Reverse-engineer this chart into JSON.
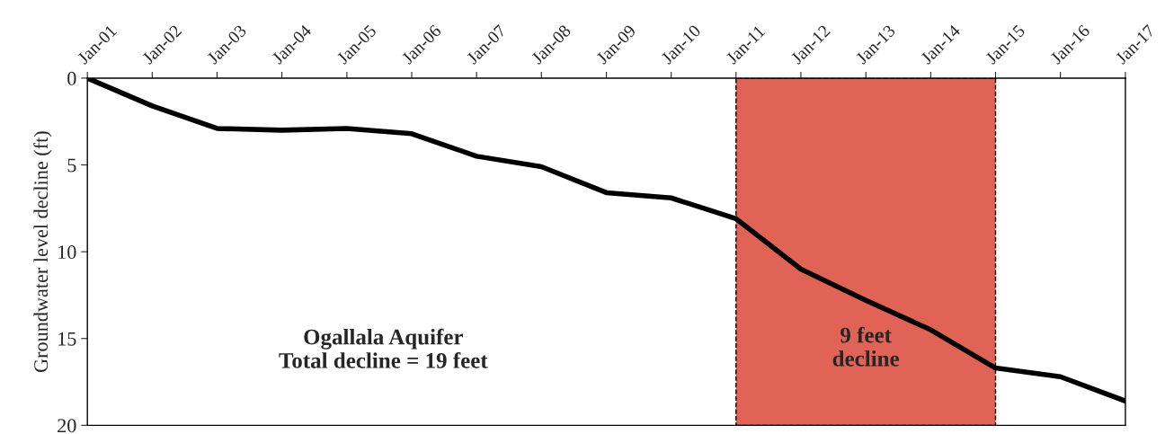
{
  "chart_data": {
    "type": "line",
    "ylabel": "Groundwater level decline (ft)",
    "x": [
      "2001-01",
      "2002-01",
      "2003-01",
      "2004-01",
      "2005-01",
      "2006-01",
      "2007-01",
      "2008-01",
      "2009-01",
      "2010-01",
      "2011-01",
      "2012-01",
      "2013-01",
      "2014-01",
      "2015-01",
      "2016-01",
      "2017-01"
    ],
    "series": [
      {
        "color": "#000000",
        "values": [
          0,
          1.6,
          2.9,
          3.0,
          2.9,
          3.2,
          4.5,
          5.1,
          6.6,
          6.9,
          8.1,
          11.0,
          12.8,
          14.5,
          16.7,
          17.2,
          18.6
        ]
      }
    ],
    "xlim": [
      "2001-01",
      "2017-01"
    ],
    "xticks": [
      {
        "value": "2001-01",
        "label": "Jan-01"
      },
      {
        "value": "2002-01",
        "label": "Jan-02"
      },
      {
        "value": "2003-01",
        "label": "Jan-03"
      },
      {
        "value": "2004-01",
        "label": "Jan-04"
      },
      {
        "value": "2005-01",
        "label": "Jan-05"
      },
      {
        "value": "2006-01",
        "label": "Jan-06"
      },
      {
        "value": "2007-01",
        "label": "Jan-07"
      },
      {
        "value": "2008-01",
        "label": "Jan-08"
      },
      {
        "value": "2009-01",
        "label": "Jan-09"
      },
      {
        "value": "2010-01",
        "label": "Jan-10"
      },
      {
        "value": "2011-01",
        "label": "Jan-11"
      },
      {
        "value": "2012-01",
        "label": "Jan-12"
      },
      {
        "value": "2013-01",
        "label": "Jan-13"
      },
      {
        "value": "2014-01",
        "label": "Jan-14"
      },
      {
        "value": "2015-01",
        "label": "Jan-15"
      },
      {
        "value": "2016-01",
        "label": "Jan-16"
      },
      {
        "value": "2017-01",
        "label": "Jan-17"
      }
    ],
    "ylim": [
      20,
      0
    ],
    "yticks": [
      0,
      5,
      10,
      15,
      20
    ],
    "bands": [
      {
        "axis": "x",
        "from": "2011-01",
        "to": "2015-01",
        "label": "9 feet\ndecline",
        "color": "#e06355"
      }
    ],
    "annotations": [
      "Ogallala Aquifer\nTotal decline = 19 feet"
    ],
    "grid": false,
    "marker": "none",
    "line_style": "solid"
  }
}
